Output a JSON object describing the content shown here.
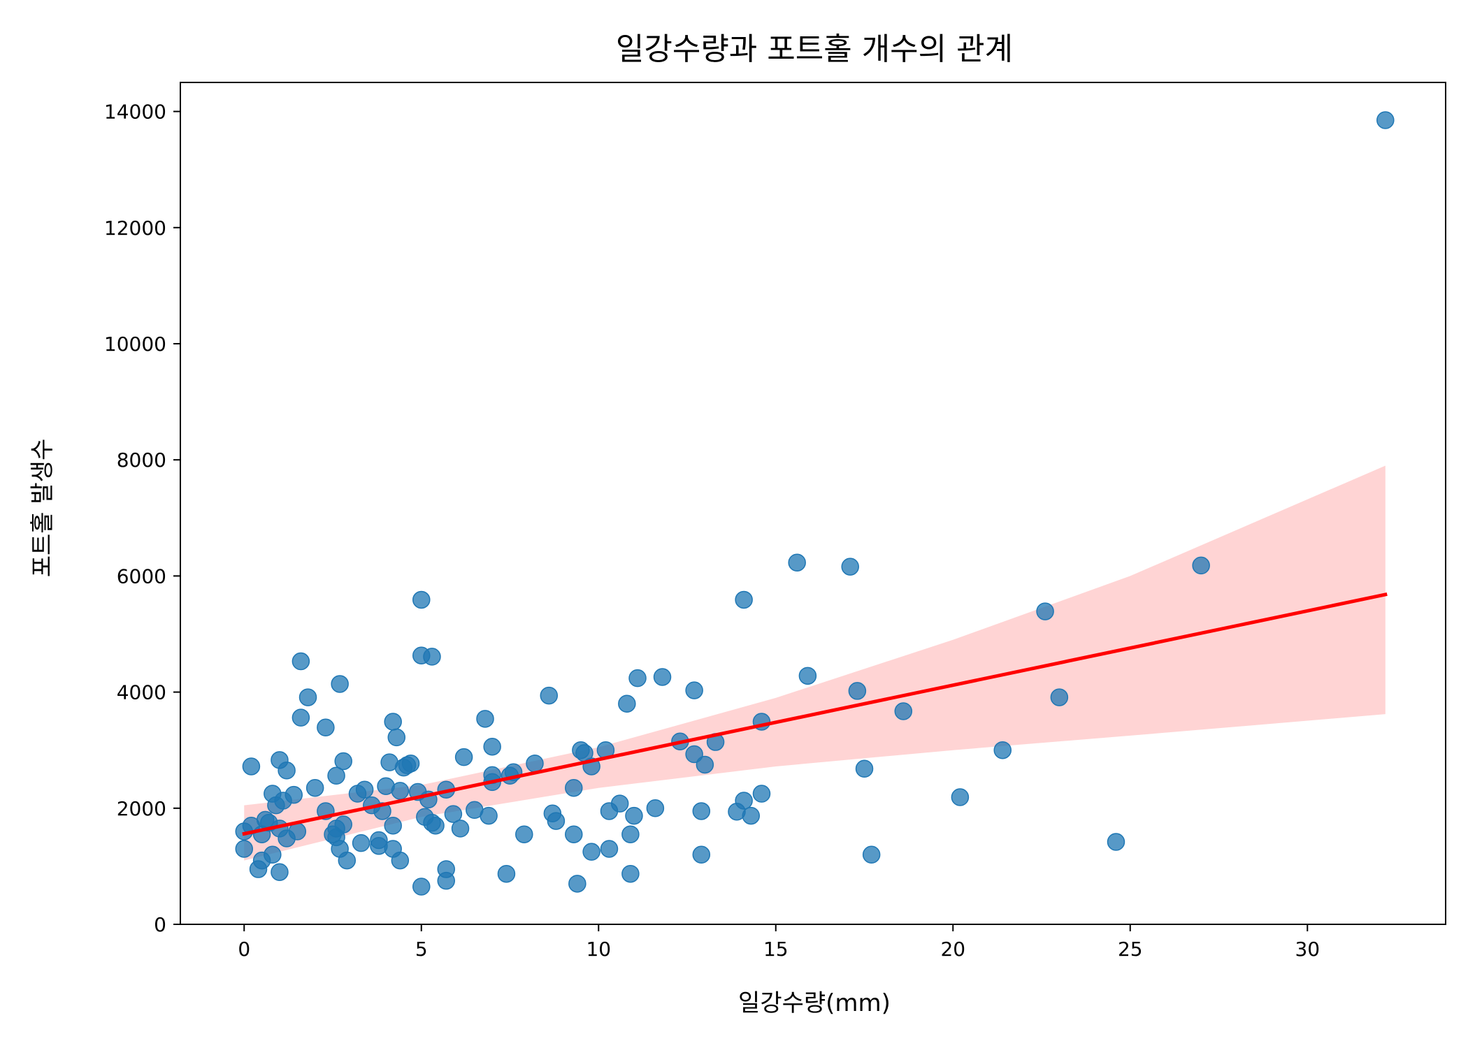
{
  "chart_data": {
    "type": "scatter",
    "title": "일강수량과 포트홀 개수의 관계",
    "xlabel": "일강수량(mm)",
    "ylabel": "포트홀 발생수",
    "xlim": [
      -1.8,
      33.9
    ],
    "ylim": [
      0,
      14500
    ],
    "xticks": [
      0,
      5,
      10,
      15,
      20,
      25,
      30
    ],
    "yticks": [
      0,
      2000,
      4000,
      6000,
      8000,
      10000,
      12000,
      14000
    ],
    "grid": false,
    "colors": {
      "points": "#1f77b4",
      "regression": "#ff0000",
      "confidence_band": "#ffcccc"
    },
    "regression": {
      "x": [
        0,
        32.2
      ],
      "y": [
        1560,
        5680
      ]
    },
    "confidence_band": {
      "x": [
        0,
        5,
        10,
        15,
        20,
        25,
        32.2
      ],
      "lower": [
        1100,
        1850,
        2350,
        2720,
        3000,
        3250,
        3620
      ],
      "upper": [
        2050,
        2400,
        3050,
        3900,
        4900,
        6000,
        7900
      ]
    },
    "points": [
      [
        0.0,
        1600
      ],
      [
        0.0,
        1300
      ],
      [
        0.2,
        1700
      ],
      [
        0.2,
        2720
      ],
      [
        0.4,
        950
      ],
      [
        0.5,
        1550
      ],
      [
        0.5,
        1100
      ],
      [
        0.6,
        1800
      ],
      [
        0.7,
        1750
      ],
      [
        0.8,
        1200
      ],
      [
        0.8,
        2250
      ],
      [
        0.9,
        2050
      ],
      [
        1.0,
        900
      ],
      [
        1.0,
        2830
      ],
      [
        1.0,
        1650
      ],
      [
        1.1,
        2130
      ],
      [
        1.2,
        1480
      ],
      [
        1.2,
        2650
      ],
      [
        1.4,
        2230
      ],
      [
        1.5,
        1600
      ],
      [
        1.6,
        4530
      ],
      [
        1.6,
        3560
      ],
      [
        1.8,
        3910
      ],
      [
        2.0,
        2350
      ],
      [
        2.3,
        1950
      ],
      [
        2.3,
        3390
      ],
      [
        2.5,
        1550
      ],
      [
        2.6,
        1650
      ],
      [
        2.6,
        2560
      ],
      [
        2.6,
        1500
      ],
      [
        2.7,
        4140
      ],
      [
        2.7,
        1300
      ],
      [
        2.8,
        2810
      ],
      [
        2.8,
        1720
      ],
      [
        2.9,
        1100
      ],
      [
        3.2,
        2250
      ],
      [
        3.3,
        1400
      ],
      [
        3.4,
        2320
      ],
      [
        3.6,
        2050
      ],
      [
        3.8,
        1450
      ],
      [
        3.8,
        1350
      ],
      [
        3.9,
        1950
      ],
      [
        4.0,
        2380
      ],
      [
        4.1,
        2790
      ],
      [
        4.2,
        3490
      ],
      [
        4.2,
        1700
      ],
      [
        4.2,
        1300
      ],
      [
        4.3,
        3220
      ],
      [
        4.4,
        1100
      ],
      [
        4.4,
        2300
      ],
      [
        4.5,
        2700
      ],
      [
        4.6,
        2740
      ],
      [
        4.7,
        2770
      ],
      [
        4.9,
        2280
      ],
      [
        5.0,
        5590
      ],
      [
        5.0,
        4630
      ],
      [
        5.0,
        650
      ],
      [
        5.1,
        1850
      ],
      [
        5.2,
        2150
      ],
      [
        5.3,
        4610
      ],
      [
        5.3,
        1750
      ],
      [
        5.4,
        1700
      ],
      [
        5.7,
        2320
      ],
      [
        5.7,
        950
      ],
      [
        5.7,
        750
      ],
      [
        5.9,
        1900
      ],
      [
        6.1,
        1650
      ],
      [
        6.2,
        2880
      ],
      [
        6.5,
        1970
      ],
      [
        6.8,
        3540
      ],
      [
        6.9,
        1870
      ],
      [
        7.0,
        3060
      ],
      [
        7.0,
        2570
      ],
      [
        7.0,
        2450
      ],
      [
        7.4,
        870
      ],
      [
        7.5,
        2560
      ],
      [
        7.6,
        2620
      ],
      [
        7.9,
        1550
      ],
      [
        8.2,
        2770
      ],
      [
        8.6,
        3940
      ],
      [
        8.7,
        1910
      ],
      [
        8.8,
        1780
      ],
      [
        9.3,
        2350
      ],
      [
        9.3,
        1550
      ],
      [
        9.4,
        700
      ],
      [
        9.5,
        3000
      ],
      [
        9.6,
        2950
      ],
      [
        9.8,
        2720
      ],
      [
        9.8,
        1250
      ],
      [
        10.2,
        3000
      ],
      [
        10.3,
        1950
      ],
      [
        10.3,
        1300
      ],
      [
        10.6,
        2080
      ],
      [
        10.8,
        3800
      ],
      [
        10.9,
        1550
      ],
      [
        10.9,
        870
      ],
      [
        11.0,
        1870
      ],
      [
        11.1,
        4240
      ],
      [
        11.6,
        2000
      ],
      [
        11.8,
        4260
      ],
      [
        12.3,
        3150
      ],
      [
        12.7,
        2930
      ],
      [
        12.7,
        4030
      ],
      [
        12.9,
        1950
      ],
      [
        12.9,
        1200
      ],
      [
        13.0,
        2750
      ],
      [
        13.3,
        3140
      ],
      [
        13.9,
        1940
      ],
      [
        14.1,
        5590
      ],
      [
        14.1,
        2130
      ],
      [
        14.3,
        1870
      ],
      [
        14.6,
        2250
      ],
      [
        14.6,
        3490
      ],
      [
        15.6,
        6230
      ],
      [
        15.9,
        4280
      ],
      [
        17.1,
        6160
      ],
      [
        17.3,
        4020
      ],
      [
        17.5,
        2680
      ],
      [
        17.7,
        1200
      ],
      [
        18.6,
        3670
      ],
      [
        20.2,
        2190
      ],
      [
        21.4,
        3000
      ],
      [
        22.6,
        5390
      ],
      [
        23.0,
        3910
      ],
      [
        24.6,
        1420
      ],
      [
        27.0,
        6180
      ],
      [
        32.2,
        13850
      ]
    ]
  }
}
